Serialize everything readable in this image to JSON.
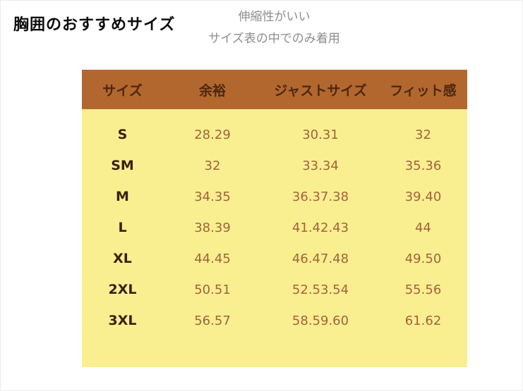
{
  "page": {
    "title": "胸囲のおすすめサイズ",
    "note_line1": "伸縮性がいい",
    "note_line2": "サイズ表の中でのみ着用"
  },
  "table": {
    "columns": [
      "サイズ",
      "余裕",
      "ジャストサイズ",
      "フィット感"
    ],
    "rows": [
      [
        "S",
        "28.29",
        "30.31",
        "32"
      ],
      [
        "SM",
        "32",
        "33.34",
        "35.36"
      ],
      [
        "M",
        "34.35",
        "36.37.38",
        "39.40"
      ],
      [
        "L",
        "38.39",
        "41.42.43",
        "44"
      ],
      [
        "XL",
        "44.45",
        "46.47.48",
        "49.50"
      ],
      [
        "2XL",
        "50.51",
        "52.53.54",
        "55.56"
      ],
      [
        "3XL",
        "56.57",
        "58.59.60",
        "61.62"
      ]
    ]
  },
  "colors": {
    "header_bg": "#b2672f",
    "header_text": "#4d2710",
    "body_bg": "#f9ef90",
    "value_text": "#a5613c",
    "size_label_text": "#38220e",
    "note_text": "#8d8d8d"
  }
}
